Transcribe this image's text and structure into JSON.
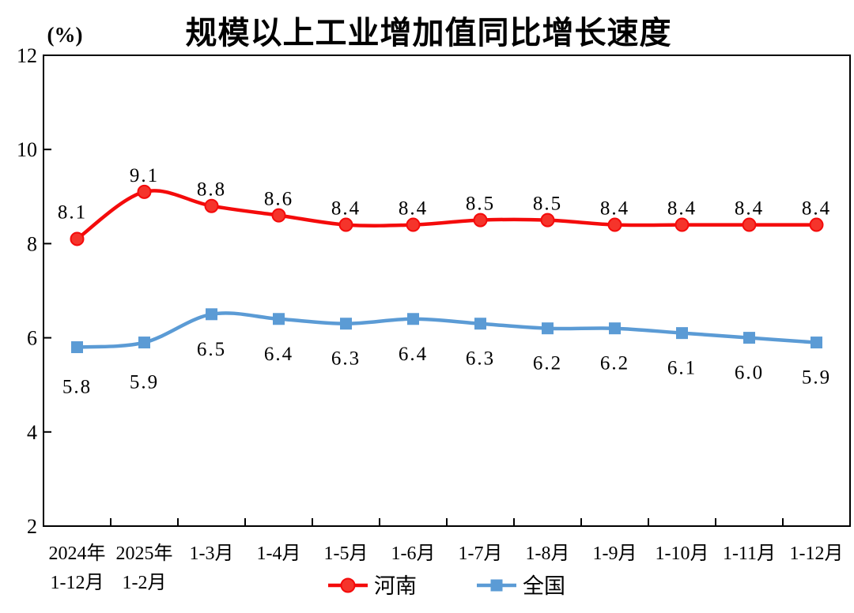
{
  "title": "规模以上工业增加值同比增长速度",
  "y_axis_unit_label": "(%)",
  "chart_data": {
    "type": "line",
    "title": "规模以上工业增加值同比增长速度",
    "ylabel": "(%)",
    "xlabel": "",
    "ylim": [
      2,
      12
    ],
    "ytick_step": 2,
    "grid": false,
    "legend_position": "bottom",
    "categories": [
      [
        "2024年",
        "1-12月"
      ],
      [
        "2025年",
        "1-2月"
      ],
      [
        "1-3月"
      ],
      [
        "1-4月"
      ],
      [
        "1-5月"
      ],
      [
        "1-6月"
      ],
      [
        "1-7月"
      ],
      [
        "1-8月"
      ],
      [
        "1-9月"
      ],
      [
        "1-10月"
      ],
      [
        "1-11月"
      ],
      [
        "1-12月"
      ]
    ],
    "series": [
      {
        "key": "henan",
        "name": "河南",
        "color": "#f40b0b",
        "marker": "circle",
        "marker_fill": "#f5342b",
        "label_position": "above",
        "values": [
          8.1,
          9.1,
          8.8,
          8.6,
          8.4,
          8.4,
          8.5,
          8.5,
          8.4,
          8.4,
          8.4,
          8.4
        ]
      },
      {
        "key": "national",
        "name": "全国",
        "color": "#5b9bd5",
        "marker": "square",
        "marker_fill": "#5b9bd5",
        "label_position": "below",
        "values": [
          5.8,
          5.9,
          6.5,
          6.4,
          6.3,
          6.4,
          6.3,
          6.2,
          6.2,
          6.1,
          6.0,
          5.9
        ]
      }
    ]
  }
}
